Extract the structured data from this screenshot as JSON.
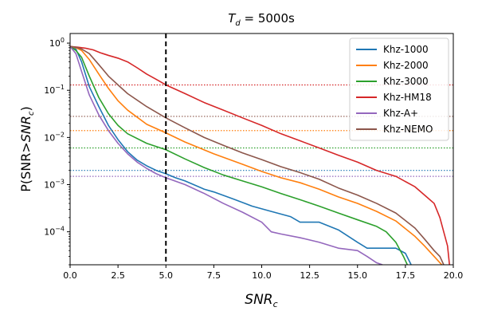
{
  "chart_data": {
    "type": "line",
    "title_main": "T",
    "title_sub": "d",
    "title_rest": " = 5000s",
    "xlabel_main": "SNR",
    "xlabel_sub": "c",
    "ylabel_pre": "P(SNR>",
    "ylabel_main": "SNR",
    "ylabel_sub": "c",
    "ylabel_post": ")",
    "xlim": [
      0,
      20
    ],
    "ylim": [
      2e-05,
      1.6
    ],
    "yscale": "log",
    "x_ticks": [
      0,
      2.5,
      5,
      7.5,
      10,
      12.5,
      15,
      17.5,
      20
    ],
    "x_tick_labels": [
      "0.0",
      "2.5",
      "5.0",
      "7.5",
      "10.0",
      "12.5",
      "15.0",
      "17.5",
      "20.0"
    ],
    "y_ticks": [
      1,
      0.1,
      0.01,
      0.001,
      0.0001
    ],
    "y_tick_labels": [
      {
        "base": "10",
        "exp": "0"
      },
      {
        "base": "10",
        "exp": "−1"
      },
      {
        "base": "10",
        "exp": "−2"
      },
      {
        "base": "10",
        "exp": "−3"
      },
      {
        "base": "10",
        "exp": "−4"
      }
    ],
    "vline": {
      "x": 5,
      "color": "#000000",
      "style": "dashed"
    },
    "legend_position": "top-right",
    "series": [
      {
        "name": "Khz-1000",
        "color": "#1f77b4",
        "ref_y": 0.002,
        "x": [
          0,
          0.3,
          0.6,
          1.0,
          1.5,
          2.0,
          2.5,
          3.0,
          3.5,
          4.0,
          4.5,
          5.0,
          5.5,
          6.0,
          7.0,
          7.5,
          8.5,
          9.5,
          10.5,
          11.5,
          12.0,
          13.0,
          14.0,
          15.0,
          15.5,
          16.5,
          17.0,
          17.5,
          17.8
        ],
        "y": [
          0.85,
          0.75,
          0.4,
          0.12,
          0.045,
          0.018,
          0.009,
          0.005,
          0.0033,
          0.0025,
          0.002,
          0.0017,
          0.0014,
          0.0012,
          0.0008,
          0.0007,
          0.0005,
          0.00035,
          0.00027,
          0.00021,
          0.00016,
          0.00016,
          0.00011,
          6e-05,
          4.5e-05,
          4.5e-05,
          4.5e-05,
          3.5e-05,
          2e-05
        ]
      },
      {
        "name": "Khz-2000",
        "color": "#ff7f0e",
        "ref_y": 0.014,
        "x": [
          0,
          0.3,
          0.6,
          1.0,
          1.5,
          2.0,
          2.5,
          3.0,
          4.0,
          5.0,
          6.0,
          7.5,
          9.0,
          10.0,
          11.0,
          12.0,
          13.0,
          14.0,
          15.0,
          16.0,
          17.0,
          18.0,
          18.5,
          19.0,
          19.4
        ],
        "y": [
          0.85,
          0.8,
          0.7,
          0.45,
          0.22,
          0.11,
          0.06,
          0.038,
          0.019,
          0.0125,
          0.008,
          0.0045,
          0.0027,
          0.0019,
          0.0014,
          0.0011,
          0.0008,
          0.00055,
          0.0004,
          0.00027,
          0.00017,
          8e-05,
          5e-05,
          3e-05,
          2e-05
        ]
      },
      {
        "name": "Khz-3000",
        "color": "#2ca02c",
        "ref_y": 0.006,
        "x": [
          0,
          0.3,
          0.6,
          1.0,
          1.5,
          2.0,
          2.5,
          3.0,
          4.0,
          5.0,
          6.0,
          7.0,
          8.0,
          9.0,
          10.0,
          11.0,
          12.0,
          13.0,
          14.0,
          15.0,
          16.0,
          16.5,
          17.0,
          17.4,
          17.6
        ],
        "y": [
          0.85,
          0.7,
          0.5,
          0.2,
          0.07,
          0.032,
          0.018,
          0.012,
          0.0075,
          0.0055,
          0.0035,
          0.0023,
          0.0016,
          0.0012,
          0.0009,
          0.00065,
          0.00048,
          0.00035,
          0.00025,
          0.00018,
          0.00013,
          0.0001,
          6e-05,
          3e-05,
          2e-05
        ]
      },
      {
        "name": "Khz-HM18",
        "color": "#d62728",
        "ref_y": 0.13,
        "x": [
          0,
          0.4,
          0.8,
          1.2,
          1.6,
          2.0,
          2.5,
          3.0,
          3.5,
          4.0,
          4.5,
          5.0,
          6.0,
          7.0,
          8.0,
          9.0,
          10.0,
          11.0,
          12.0,
          13.0,
          14.0,
          15.0,
          16.0,
          17.0,
          18.0,
          18.5,
          19.0,
          19.3,
          19.5,
          19.7,
          19.8
        ],
        "y": [
          0.85,
          0.82,
          0.78,
          0.72,
          0.62,
          0.55,
          0.48,
          0.4,
          0.3,
          0.22,
          0.17,
          0.13,
          0.085,
          0.055,
          0.038,
          0.026,
          0.018,
          0.012,
          0.0085,
          0.006,
          0.0042,
          0.003,
          0.002,
          0.0015,
          0.0009,
          0.0006,
          0.0004,
          0.0002,
          0.0001,
          5e-05,
          2e-05
        ]
      },
      {
        "name": "Khz-A+",
        "color": "#9467bd",
        "ref_y": 0.0015,
        "x": [
          0,
          0.3,
          0.6,
          1.0,
          1.5,
          2.0,
          2.5,
          3.0,
          3.5,
          4.0,
          4.5,
          5.0,
          6.0,
          7.0,
          8.0,
          9.0,
          10.0,
          10.5,
          11.0,
          12.0,
          13.0,
          14.0,
          15.0,
          15.5,
          16.0,
          16.3
        ],
        "y": [
          0.85,
          0.6,
          0.25,
          0.08,
          0.03,
          0.014,
          0.0075,
          0.0045,
          0.003,
          0.0022,
          0.0017,
          0.0014,
          0.001,
          0.00065,
          0.0004,
          0.00026,
          0.00016,
          0.0001,
          9e-05,
          7.5e-05,
          6e-05,
          4.5e-05,
          4e-05,
          3e-05,
          2.2e-05,
          2e-05
        ]
      },
      {
        "name": "Khz-NEMO",
        "color": "#8c564b",
        "ref_y": 0.028,
        "x": [
          0,
          0.3,
          0.6,
          1.0,
          1.5,
          2.0,
          2.5,
          3.0,
          4.0,
          5.0,
          6.0,
          7.0,
          8.0,
          9.0,
          10.0,
          11.0,
          12.0,
          13.0,
          14.0,
          15.0,
          16.0,
          17.0,
          18.0,
          18.5,
          19.0,
          19.3,
          19.5
        ],
        "y": [
          0.85,
          0.82,
          0.75,
          0.6,
          0.35,
          0.2,
          0.13,
          0.085,
          0.045,
          0.026,
          0.016,
          0.01,
          0.0068,
          0.0047,
          0.0034,
          0.0024,
          0.0018,
          0.0013,
          0.00085,
          0.0006,
          0.0004,
          0.00025,
          0.00012,
          7e-05,
          4e-05,
          3e-05,
          2e-05
        ]
      }
    ]
  }
}
